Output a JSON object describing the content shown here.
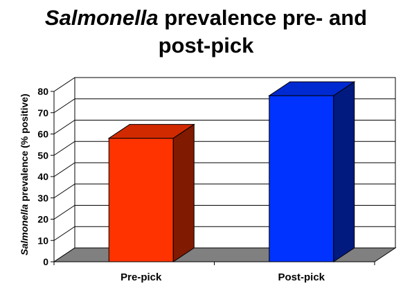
{
  "title": {
    "italic_part": "Salmonella",
    "rest_line1": " prevalence pre- and",
    "line2": "post-pick"
  },
  "chart_data": {
    "type": "bar",
    "categories": [
      "Pre-pick",
      "Post-pick"
    ],
    "series": [
      {
        "values": [
          58,
          78
        ]
      }
    ],
    "bar_colors": [
      "#ff3300",
      "#0033ff"
    ],
    "ylabel_italic": "Salmonella",
    "ylabel_rest": " prevalence (% positive)",
    "xlabel": "",
    "ylim": [
      0,
      80
    ],
    "yticks": [
      0,
      10,
      20,
      30,
      40,
      50,
      60,
      70,
      80
    ],
    "grid": true,
    "style": "3d",
    "floor_color": "#808080",
    "wall_color": "#ffffff"
  }
}
